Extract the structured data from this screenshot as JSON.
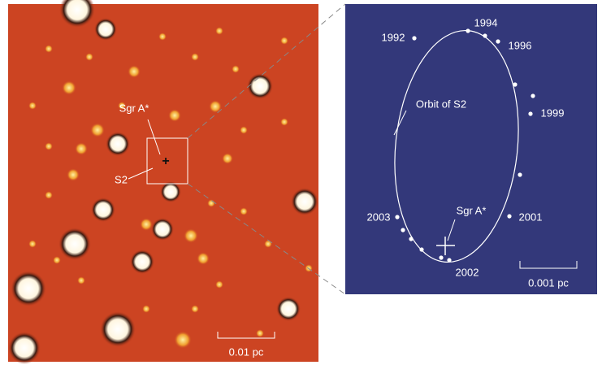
{
  "left_panel": {
    "sgr_a_label": "Sgr A*",
    "s2_label": "S2",
    "scale_bar": "0.01 pc"
  },
  "right_panel": {
    "years": [
      "1992",
      "1994",
      "1996",
      "1999",
      "2001",
      "2002",
      "2003"
    ],
    "orbit_label": "Orbit of S2",
    "sgr_a_label": "Sgr A*",
    "scale_bar": "0.001 pc"
  }
}
